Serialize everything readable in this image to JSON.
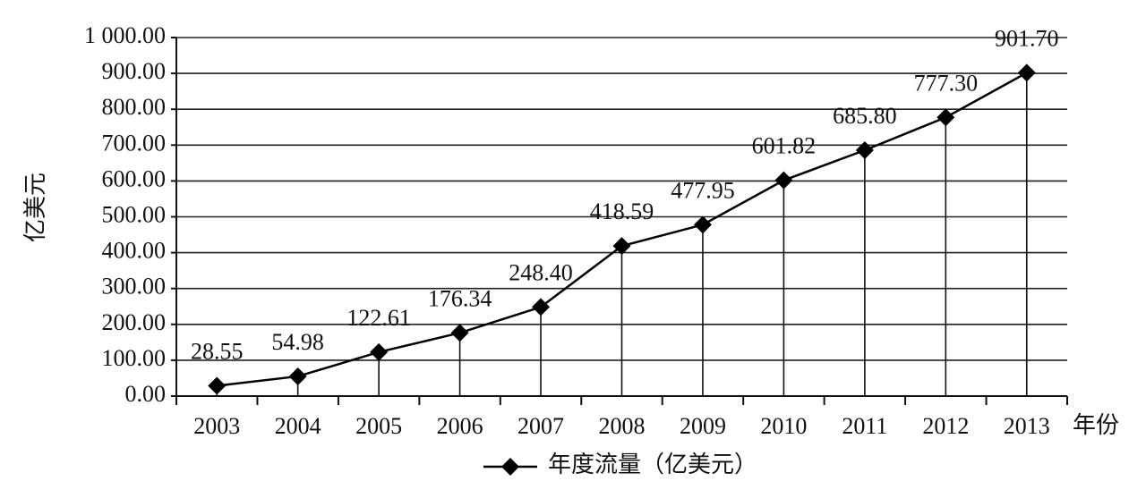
{
  "chart_data": {
    "type": "line",
    "y_label": "亿美元",
    "x_label": "年份",
    "categories": [
      "2003",
      "2004",
      "2005",
      "2006",
      "2007",
      "2008",
      "2009",
      "2010",
      "2011",
      "2012",
      "2013"
    ],
    "series": [
      {
        "name": "年度流量（亿美元）",
        "color": "#000000",
        "values": [
          28.55,
          54.98,
          122.61,
          176.34,
          248.4,
          418.59,
          477.95,
          601.82,
          685.8,
          777.3,
          901.7
        ],
        "value_labels": [
          "28.55",
          "54.98",
          "122.61",
          "176.34",
          "248.40",
          "418.59",
          "477.95",
          "601.82",
          "685.80",
          "777.30",
          "901.70"
        ]
      }
    ],
    "ylim": [
      0,
      1000
    ],
    "yticks": [
      {
        "value": 0,
        "label": "0.00"
      },
      {
        "value": 100,
        "label": "100.00"
      },
      {
        "value": 200,
        "label": "200.00"
      },
      {
        "value": 300,
        "label": "300.00"
      },
      {
        "value": 400,
        "label": "400.00"
      },
      {
        "value": 500,
        "label": "500.00"
      },
      {
        "value": 600,
        "label": "600.00"
      },
      {
        "value": 700,
        "label": "700.00"
      },
      {
        "value": 800,
        "label": "800.00"
      },
      {
        "value": 900,
        "label": "900.00"
      },
      {
        "value": 1000,
        "label": "1 000.00"
      }
    ],
    "grid": true,
    "legend": "bottom"
  }
}
